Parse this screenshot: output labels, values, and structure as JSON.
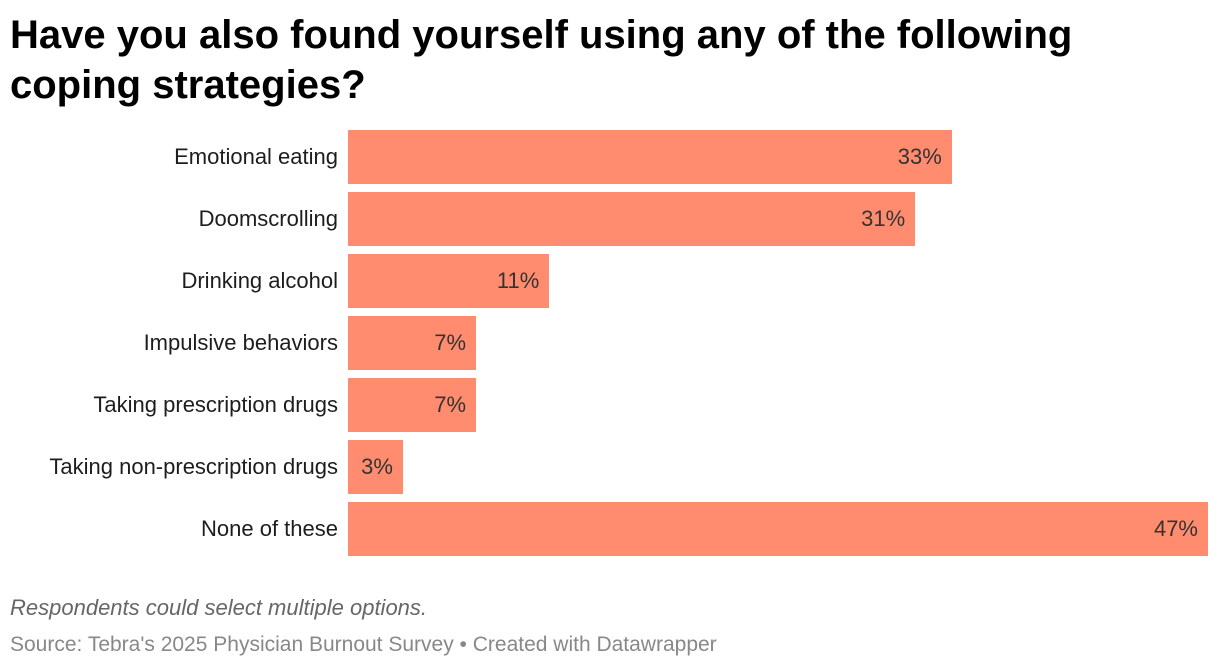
{
  "title": "Have you also found yourself using any of the following coping strategies?",
  "note": "Respondents could select multiple options.",
  "source": "Source: Tebra's 2025 Physician Burnout Survey • Created with Datawrapper",
  "colors": {
    "bar": "#ff8c6e"
  },
  "chart_data": {
    "type": "bar",
    "orientation": "horizontal",
    "categories": [
      "Emotional eating",
      "Doomscrolling",
      "Drinking alcohol",
      "Impulsive behaviors",
      "Taking prescription drugs",
      "Taking non-prescription drugs",
      "None of these"
    ],
    "values": [
      33,
      31,
      11,
      7,
      7,
      3,
      47
    ],
    "value_labels": [
      "33%",
      "31%",
      "11%",
      "7%",
      "7%",
      "3%",
      "47%"
    ],
    "xlim": [
      0,
      47
    ],
    "grid": false,
    "legend": "none"
  }
}
